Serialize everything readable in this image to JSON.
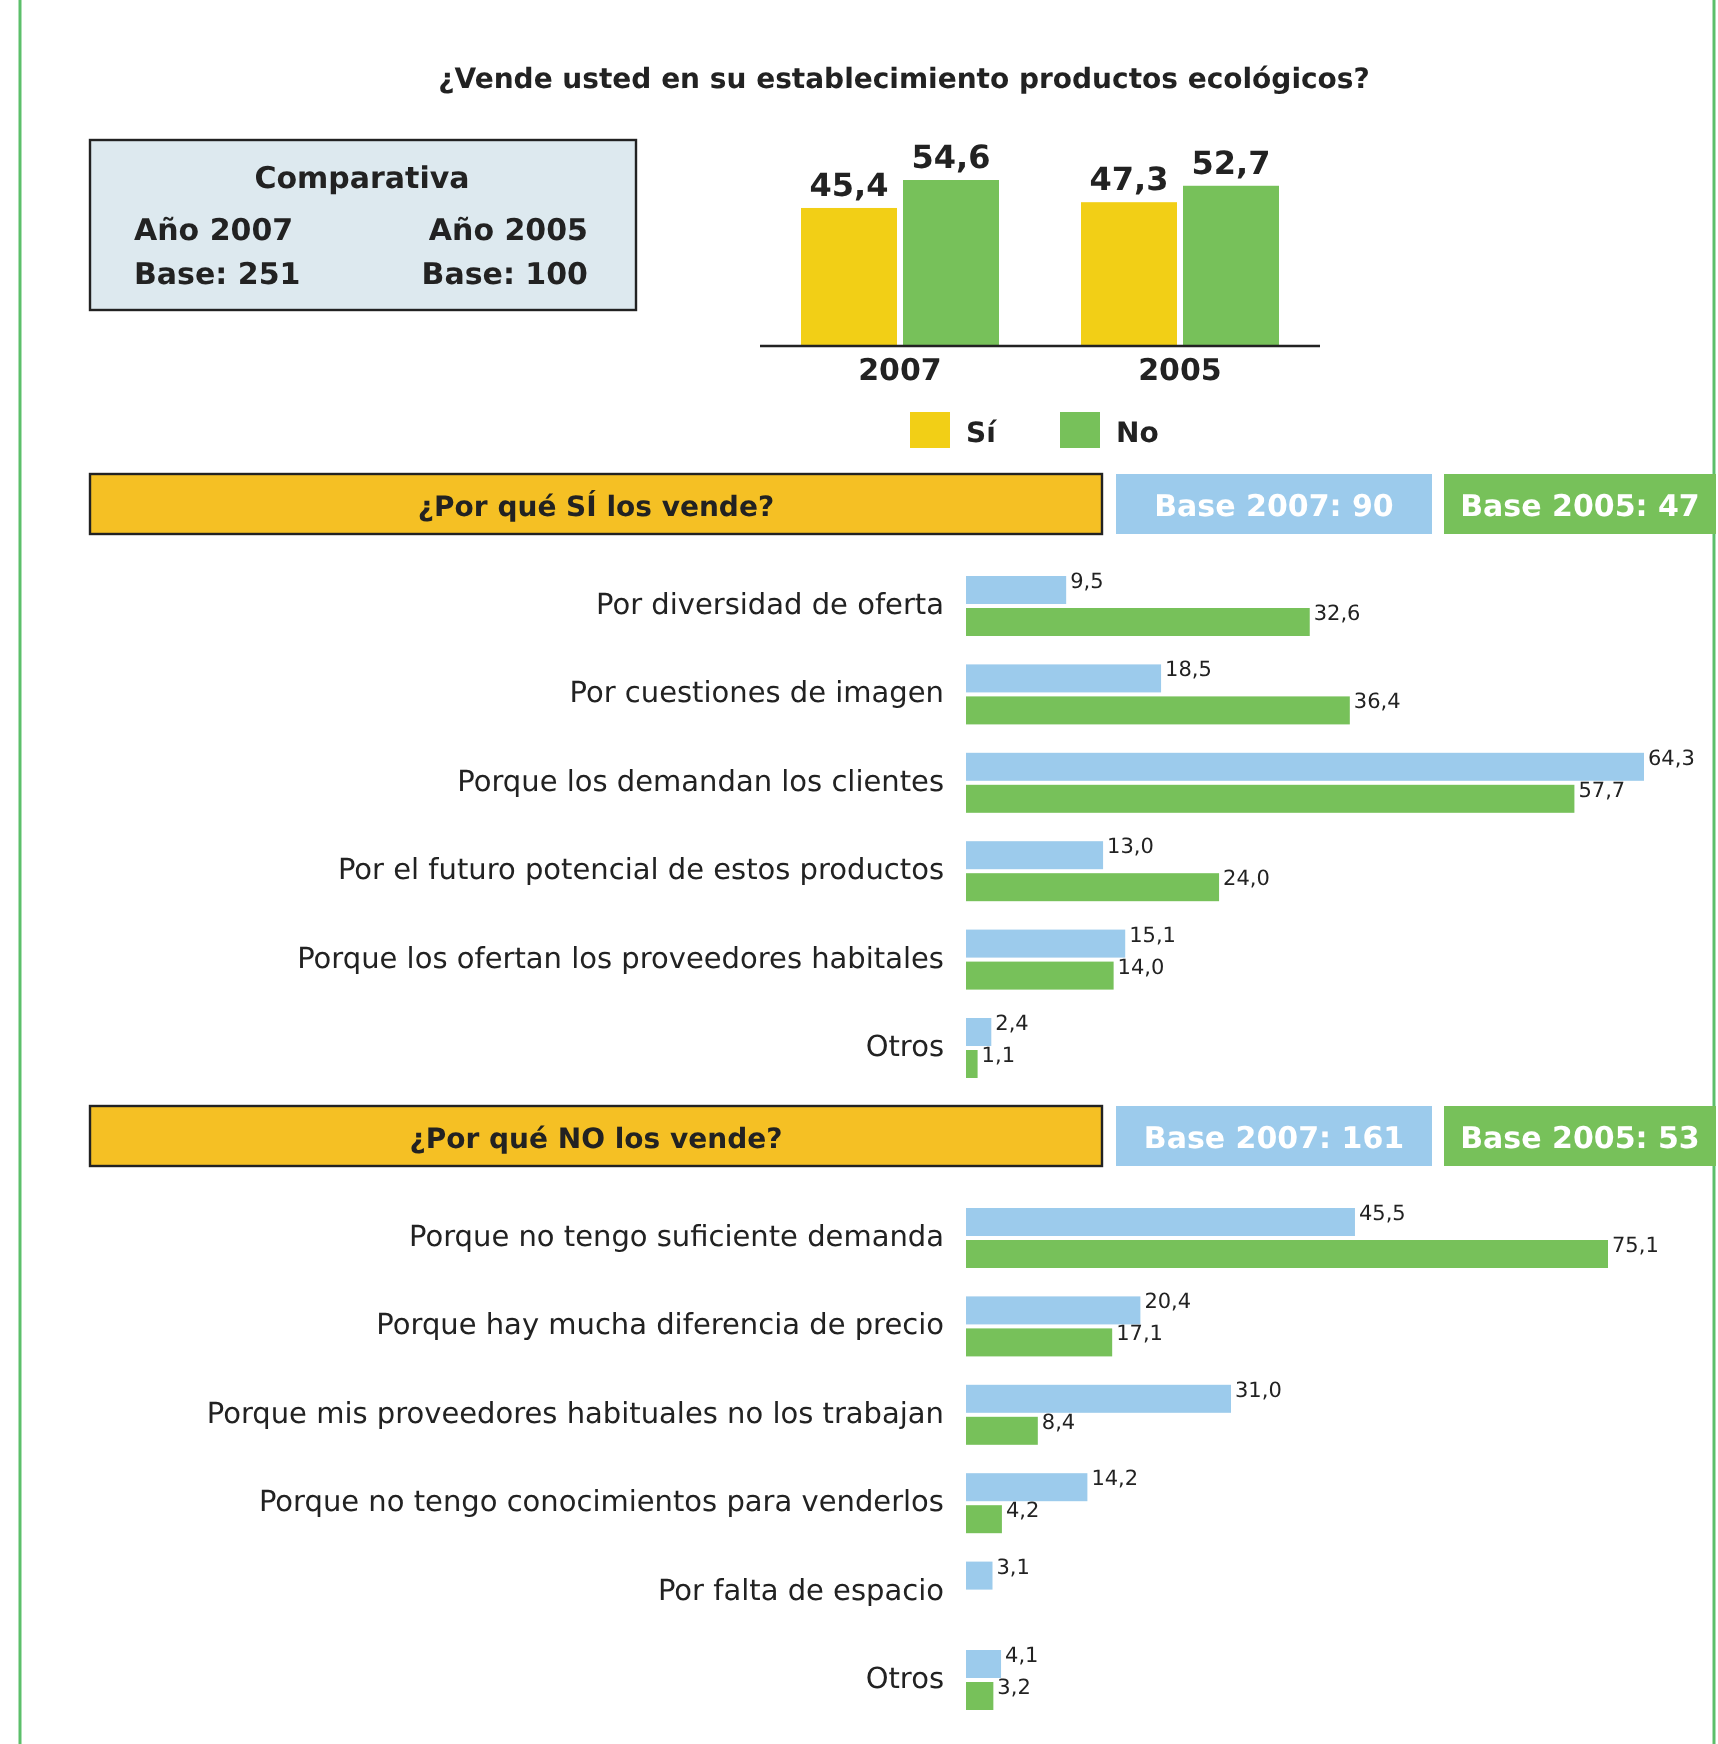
{
  "chart_data": [
    {
      "type": "other",
      "title": "Comparativa",
      "annotations": [
        "Año 2007",
        "Año 2005",
        "Base: 251",
        "Base: 100"
      ]
    },
    {
      "type": "bar",
      "title": "¿Vende usted en su establecimiento productos ecológicos?",
      "categories": [
        "2007",
        "2005"
      ],
      "legend": "bottom",
      "series": [
        {
          "name": "Sí",
          "color": "#f2cf16",
          "values": [
            45.4,
            47.3
          ],
          "value_labels": [
            "45,4",
            "47,3"
          ]
        },
        {
          "name": "No",
          "color": "#77c15a",
          "values": [
            54.6,
            52.7
          ],
          "value_labels": [
            "54,6",
            "52,7"
          ]
        }
      ]
    },
    {
      "type": "bar",
      "orientation": "horizontal",
      "title": "¿Por qué SÍ los vende?",
      "legend": "top right",
      "categories": [
        "Por diversidad de oferta",
        "Por cuestiones de imagen",
        "Porque los demandan los clientes",
        "Por el futuro potencial de estos productos",
        "Porque los ofertan los proveedores habitales",
        "Otros"
      ],
      "series": [
        {
          "name": "Base 2007: 90",
          "color": "#9ccbec",
          "values": [
            9.5,
            18.5,
            64.3,
            13.0,
            15.1,
            2.4
          ],
          "value_labels": [
            "9,5",
            "18,5",
            "64,3",
            "13,0",
            "15,1",
            "2,4"
          ]
        },
        {
          "name": "Base 2005: 47",
          "color": "#77c15a",
          "values": [
            32.6,
            36.4,
            57.7,
            24.0,
            14.0,
            1.1
          ],
          "value_labels": [
            "32,6",
            "36,4",
            "57,7",
            "24,0",
            "14,0",
            "1,1"
          ]
        }
      ]
    },
    {
      "type": "bar",
      "orientation": "horizontal",
      "title": "¿Por qué NO los vende?",
      "legend": "top right",
      "categories": [
        "Porque no tengo suficiente demanda",
        "Porque hay mucha diferencia de precio",
        "Porque mis proveedores habituales no los trabajan",
        "Porque no tengo conocimientos para venderlos",
        "Por falta de espacio",
        "Otros"
      ],
      "series": [
        {
          "name": "Base 2007: 161",
          "color": "#9ccbec",
          "values": [
            45.5,
            20.4,
            31.0,
            14.2,
            3.1,
            4.1
          ],
          "value_labels": [
            "45,5",
            "20,4",
            "31,0",
            "14,2",
            "3,1",
            "4,1"
          ]
        },
        {
          "name": "Base 2005: 53",
          "color": "#77c15a",
          "values": [
            75.1,
            17.1,
            8.4,
            4.2,
            null,
            3.2
          ],
          "value_labels": [
            "75,1",
            "17,1",
            "8,4",
            "4,2",
            null,
            "3,2"
          ]
        }
      ]
    }
  ]
}
